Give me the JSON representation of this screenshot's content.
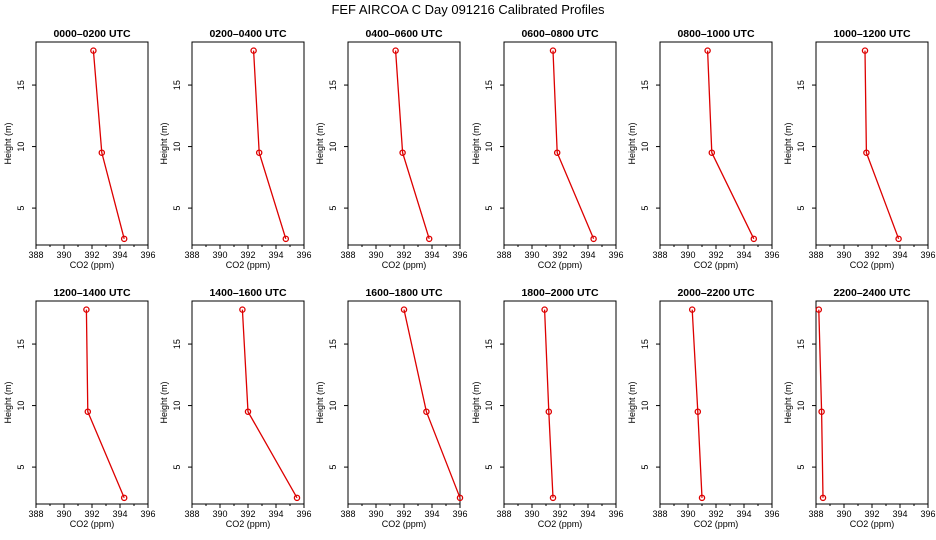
{
  "title": "FEF AIRCOA C  Day 091216  Calibrated Profiles",
  "colors": {
    "line": "#dd0000",
    "point": "#dd0000",
    "axis": "#000000"
  },
  "chart_data": [
    {
      "type": "line",
      "title": "0000–0200 UTC",
      "xlabel": "CO2 (ppm)",
      "ylabel": "Height (m)",
      "xlim": [
        388,
        396
      ],
      "ylim": [
        2,
        18.5
      ],
      "xticks": [
        "388",
        "390",
        "392",
        "394",
        "396"
      ],
      "yticks": [
        "5",
        "10",
        "15"
      ],
      "x": [
        394.3,
        392.7,
        392.1
      ],
      "y": [
        2.5,
        9.5,
        17.8
      ]
    },
    {
      "type": "line",
      "title": "0200–0400 UTC",
      "xlabel": "CO2 (ppm)",
      "ylabel": "Height (m)",
      "xlim": [
        388,
        396
      ],
      "ylim": [
        2,
        18.5
      ],
      "xticks": [
        "388",
        "390",
        "392",
        "394",
        "396"
      ],
      "yticks": [
        "5",
        "10",
        "15"
      ],
      "x": [
        394.7,
        392.8,
        392.4
      ],
      "y": [
        2.5,
        9.5,
        17.8
      ]
    },
    {
      "type": "line",
      "title": "0400–0600 UTC",
      "xlabel": "CO2 (ppm)",
      "ylabel": "Height (m)",
      "xlim": [
        388,
        396
      ],
      "ylim": [
        2,
        18.5
      ],
      "xticks": [
        "388",
        "390",
        "392",
        "394",
        "396"
      ],
      "yticks": [
        "5",
        "10",
        "15"
      ],
      "x": [
        393.8,
        391.9,
        391.4
      ],
      "y": [
        2.5,
        9.5,
        17.8
      ]
    },
    {
      "type": "line",
      "title": "0600–0800 UTC",
      "xlabel": "CO2 (ppm)",
      "ylabel": "Height (m)",
      "xlim": [
        388,
        396
      ],
      "ylim": [
        2,
        18.5
      ],
      "xticks": [
        "388",
        "390",
        "392",
        "394",
        "396"
      ],
      "yticks": [
        "5",
        "10",
        "15"
      ],
      "x": [
        394.4,
        391.8,
        391.5
      ],
      "y": [
        2.5,
        9.5,
        17.8
      ]
    },
    {
      "type": "line",
      "title": "0800–1000 UTC",
      "xlabel": "CO2 (ppm)",
      "ylabel": "Height (m)",
      "xlim": [
        388,
        396
      ],
      "ylim": [
        2,
        18.5
      ],
      "xticks": [
        "388",
        "390",
        "392",
        "394",
        "396"
      ],
      "yticks": [
        "5",
        "10",
        "15"
      ],
      "x": [
        394.7,
        391.7,
        391.4
      ],
      "y": [
        2.5,
        9.5,
        17.8
      ]
    },
    {
      "type": "line",
      "title": "1000–1200 UTC",
      "xlabel": "CO2 (ppm)",
      "ylabel": "Height (m)",
      "xlim": [
        388,
        396
      ],
      "ylim": [
        2,
        18.5
      ],
      "xticks": [
        "388",
        "390",
        "392",
        "394",
        "396"
      ],
      "yticks": [
        "5",
        "10",
        "15"
      ],
      "x": [
        393.9,
        391.6,
        391.5
      ],
      "y": [
        2.5,
        9.5,
        17.8
      ]
    },
    {
      "type": "line",
      "title": "1200–1400 UTC",
      "xlabel": "CO2 (ppm)",
      "ylabel": "Height (m)",
      "xlim": [
        388,
        396
      ],
      "ylim": [
        2,
        18.5
      ],
      "xticks": [
        "388",
        "390",
        "392",
        "394",
        "396"
      ],
      "yticks": [
        "5",
        "10",
        "15"
      ],
      "x": [
        394.3,
        391.7,
        391.6
      ],
      "y": [
        2.5,
        9.5,
        17.8
      ]
    },
    {
      "type": "line",
      "title": "1400–1600 UTC",
      "xlabel": "CO2 (ppm)",
      "ylabel": "Height (m)",
      "xlim": [
        388,
        396
      ],
      "ylim": [
        2,
        18.5
      ],
      "xticks": [
        "388",
        "390",
        "392",
        "394",
        "396"
      ],
      "yticks": [
        "5",
        "10",
        "15"
      ],
      "x": [
        395.5,
        392.0,
        391.6
      ],
      "y": [
        2.5,
        9.5,
        17.8
      ]
    },
    {
      "type": "line",
      "title": "1600–1800 UTC",
      "xlabel": "CO2 (ppm)",
      "ylabel": "Height (m)",
      "xlim": [
        388,
        396
      ],
      "ylim": [
        2,
        18.5
      ],
      "xticks": [
        "388",
        "390",
        "392",
        "394",
        "396"
      ],
      "yticks": [
        "5",
        "10",
        "15"
      ],
      "x": [
        396.0,
        393.6,
        392.0
      ],
      "y": [
        2.5,
        9.5,
        17.8
      ]
    },
    {
      "type": "line",
      "title": "1800–2000 UTC",
      "xlabel": "CO2 (ppm)",
      "ylabel": "Height (m)",
      "xlim": [
        388,
        396
      ],
      "ylim": [
        2,
        18.5
      ],
      "xticks": [
        "388",
        "390",
        "392",
        "394",
        "396"
      ],
      "yticks": [
        "5",
        "10",
        "15"
      ],
      "x": [
        391.5,
        391.2,
        390.9
      ],
      "y": [
        2.5,
        9.5,
        17.8
      ]
    },
    {
      "type": "line",
      "title": "2000–2200 UTC",
      "xlabel": "CO2 (ppm)",
      "ylabel": "Height (m)",
      "xlim": [
        388,
        396
      ],
      "ylim": [
        2,
        18.5
      ],
      "xticks": [
        "388",
        "390",
        "392",
        "394",
        "396"
      ],
      "yticks": [
        "5",
        "10",
        "15"
      ],
      "x": [
        391.0,
        390.7,
        390.3
      ],
      "y": [
        2.5,
        9.5,
        17.8
      ]
    },
    {
      "type": "line",
      "title": "2200–2400 UTC",
      "xlabel": "CO2 (ppm)",
      "ylabel": "Height (m)",
      "xlim": [
        388,
        396
      ],
      "ylim": [
        2,
        18.5
      ],
      "xticks": [
        "388",
        "390",
        "392",
        "394",
        "396"
      ],
      "yticks": [
        "5",
        "10",
        "15"
      ],
      "x": [
        388.5,
        388.4,
        388.2
      ],
      "y": [
        2.5,
        9.5,
        17.8
      ]
    }
  ]
}
